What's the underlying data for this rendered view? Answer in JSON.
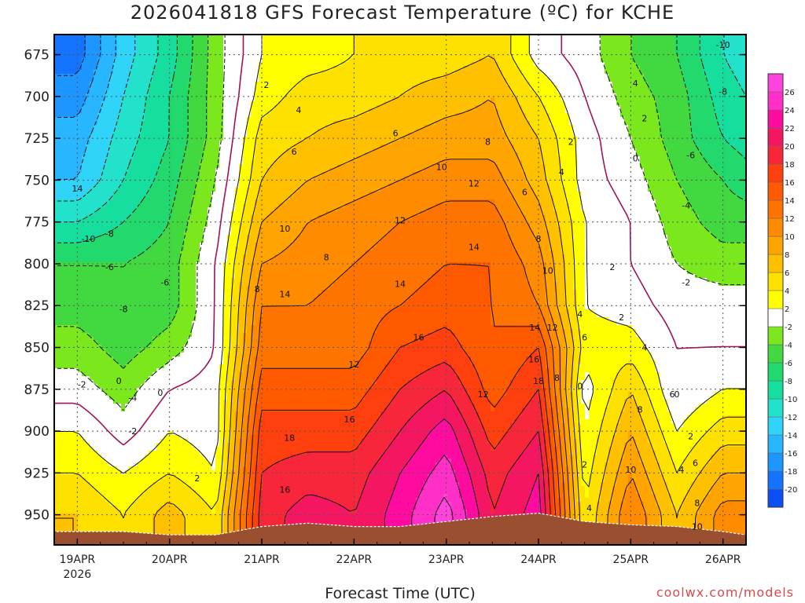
{
  "chart_data": {
    "type": "heatmap",
    "title": "2026041818 GFS Forecast Temperature (ºC) for KCHE",
    "xlabel": "Forecast Time (UTC)",
    "ylabel": "",
    "y_ticks": [
      675,
      700,
      725,
      750,
      775,
      800,
      825,
      850,
      875,
      900,
      925,
      950
    ],
    "y_range": [
      663,
      968
    ],
    "x_ticks": [
      {
        "day": 0,
        "label": "19APR",
        "sub": "2026"
      },
      {
        "day": 1,
        "label": "20APR",
        "sub": ""
      },
      {
        "day": 2,
        "label": "21APR",
        "sub": ""
      },
      {
        "day": 3,
        "label": "22APR",
        "sub": ""
      },
      {
        "day": 4,
        "label": "23APR",
        "sub": ""
      },
      {
        "day": 5,
        "label": "24APR",
        "sub": ""
      },
      {
        "day": 6,
        "label": "25APR",
        "sub": ""
      },
      {
        "day": 7,
        "label": "26APR",
        "sub": ""
      }
    ],
    "x_range": [
      -0.25,
      7.25
    ],
    "grid": true,
    "colorbar": {
      "levels": [
        -20,
        -18,
        -16,
        -14,
        -12,
        -10,
        -8,
        -6,
        -4,
        -2,
        2,
        4,
        6,
        8,
        10,
        12,
        14,
        16,
        18,
        20,
        22,
        24,
        26
      ],
      "colors": [
        "#0b4ff5",
        "#1474ff",
        "#1d96ff",
        "#27b6ff",
        "#2fd4f8",
        "#22e2cc",
        "#15de9e",
        "#22d96e",
        "#41d93f",
        "#7be81d",
        "#ffffff",
        "#ffff00",
        "#ffe100",
        "#ffc000",
        "#ffa400",
        "#ff8c00",
        "#ff7300",
        "#ff5a00",
        "#ff3f0e",
        "#f8263a",
        "#f51662",
        "#ff0ba0",
        "#ff2fc8",
        "#ff44dd"
      ]
    },
    "temperature_profiles": [
      {
        "day": 0.0,
        "levels": [
          [
            675,
            -19
          ],
          [
            700,
            -17
          ],
          [
            725,
            -15
          ],
          [
            750,
            -14
          ],
          [
            775,
            -10
          ],
          [
            800,
            -6
          ],
          [
            825,
            -5
          ],
          [
            850,
            -3
          ],
          [
            875,
            -1
          ],
          [
            900,
            2
          ],
          [
            925,
            4
          ],
          [
            950,
            6
          ]
        ]
      },
      {
        "day": 0.5,
        "levels": [
          [
            675,
            -13
          ],
          [
            700,
            -12
          ],
          [
            725,
            -11
          ],
          [
            750,
            -10
          ],
          [
            775,
            -8
          ],
          [
            800,
            -6
          ],
          [
            825,
            -6
          ],
          [
            850,
            -5
          ],
          [
            875,
            -3
          ],
          [
            900,
            -1
          ],
          [
            925,
            2
          ],
          [
            950,
            4
          ]
        ]
      },
      {
        "day": 1.0,
        "levels": [
          [
            675,
            -9
          ],
          [
            700,
            -8
          ],
          [
            725,
            -8
          ],
          [
            750,
            -7
          ],
          [
            775,
            -6
          ],
          [
            800,
            -5
          ],
          [
            825,
            -5
          ],
          [
            850,
            -3
          ],
          [
            875,
            0
          ],
          [
            900,
            2
          ],
          [
            925,
            4
          ],
          [
            950,
            7
          ]
        ]
      },
      {
        "day": 1.5,
        "levels": [
          [
            675,
            -3
          ],
          [
            700,
            -3
          ],
          [
            725,
            -3
          ],
          [
            750,
            -2
          ],
          [
            775,
            -1
          ],
          [
            800,
            0
          ],
          [
            825,
            0
          ],
          [
            850,
            0
          ],
          [
            875,
            1
          ],
          [
            900,
            1
          ],
          [
            925,
            2
          ],
          [
            950,
            4
          ]
        ]
      },
      {
        "day": 2.0,
        "levels": [
          [
            675,
            2
          ],
          [
            700,
            3
          ],
          [
            725,
            5
          ],
          [
            750,
            6
          ],
          [
            775,
            8
          ],
          [
            800,
            10
          ],
          [
            825,
            12
          ],
          [
            850,
            13
          ],
          [
            875,
            15
          ],
          [
            900,
            17
          ],
          [
            925,
            18
          ],
          [
            950,
            19
          ]
        ]
      },
      {
        "day": 2.5,
        "levels": [
          [
            675,
            3
          ],
          [
            700,
            5
          ],
          [
            725,
            6
          ],
          [
            750,
            8
          ],
          [
            775,
            10
          ],
          [
            800,
            11
          ],
          [
            825,
            12
          ],
          [
            850,
            13
          ],
          [
            875,
            15
          ],
          [
            900,
            17
          ],
          [
            925,
            19
          ],
          [
            950,
            21
          ]
        ]
      },
      {
        "day": 3.0,
        "levels": [
          [
            675,
            4
          ],
          [
            700,
            5
          ],
          [
            725,
            7
          ],
          [
            750,
            9
          ],
          [
            775,
            11
          ],
          [
            800,
            12
          ],
          [
            825,
            13
          ],
          [
            850,
            13
          ],
          [
            875,
            15
          ],
          [
            900,
            17
          ],
          [
            925,
            19
          ],
          [
            950,
            20
          ]
        ]
      },
      {
        "day": 3.5,
        "levels": [
          [
            675,
            5
          ],
          [
            700,
            6
          ],
          [
            725,
            8
          ],
          [
            750,
            10
          ],
          [
            775,
            12
          ],
          [
            800,
            13
          ],
          [
            825,
            14
          ],
          [
            850,
            16
          ],
          [
            875,
            18
          ],
          [
            900,
            20
          ],
          [
            925,
            22
          ],
          [
            950,
            23
          ]
        ]
      },
      {
        "day": 4.0,
        "levels": [
          [
            675,
            5
          ],
          [
            700,
            7
          ],
          [
            725,
            9
          ],
          [
            750,
            11
          ],
          [
            775,
            13
          ],
          [
            800,
            14
          ],
          [
            825,
            15
          ],
          [
            850,
            17
          ],
          [
            875,
            20
          ],
          [
            900,
            23
          ],
          [
            925,
            25
          ],
          [
            950,
            27
          ]
        ]
      },
      {
        "day": 4.5,
        "levels": [
          [
            675,
            6
          ],
          [
            700,
            8
          ],
          [
            725,
            9
          ],
          [
            750,
            11
          ],
          [
            775,
            13
          ],
          [
            800,
            14
          ],
          [
            825,
            14
          ],
          [
            850,
            14
          ],
          [
            875,
            15
          ],
          [
            900,
            17
          ],
          [
            925,
            19
          ],
          [
            950,
            20
          ]
        ]
      },
      {
        "day": 5.0,
        "levels": [
          [
            675,
            1
          ],
          [
            700,
            4
          ],
          [
            725,
            6
          ],
          [
            750,
            7
          ],
          [
            775,
            9
          ],
          [
            800,
            11
          ],
          [
            825,
            12
          ],
          [
            850,
            16
          ],
          [
            875,
            18
          ],
          [
            900,
            20
          ],
          [
            925,
            22
          ],
          [
            950,
            23
          ]
        ]
      },
      {
        "day": 5.5,
        "levels": [
          [
            675,
            -1
          ],
          [
            700,
            0
          ],
          [
            725,
            1
          ],
          [
            750,
            1
          ],
          [
            775,
            2
          ],
          [
            800,
            2
          ],
          [
            825,
            2
          ],
          [
            850,
            3
          ],
          [
            875,
            1
          ],
          [
            900,
            2
          ],
          [
            925,
            3
          ],
          [
            950,
            4
          ]
        ]
      },
      {
        "day": 6.0,
        "levels": [
          [
            675,
            -4
          ],
          [
            700,
            -3
          ],
          [
            725,
            -2
          ],
          [
            750,
            -1
          ],
          [
            775,
            0
          ],
          [
            800,
            0
          ],
          [
            825,
            1
          ],
          [
            850,
            3
          ],
          [
            875,
            6
          ],
          [
            900,
            8
          ],
          [
            925,
            10
          ],
          [
            950,
            12
          ]
        ]
      },
      {
        "day": 6.5,
        "levels": [
          [
            675,
            -6
          ],
          [
            700,
            -5
          ],
          [
            725,
            -5
          ],
          [
            750,
            -4
          ],
          [
            775,
            -3
          ],
          [
            800,
            -2
          ],
          [
            825,
            -1
          ],
          [
            850,
            0
          ],
          [
            875,
            0
          ],
          [
            900,
            2
          ],
          [
            925,
            4
          ],
          [
            950,
            6
          ]
        ]
      },
      {
        "day": 7.0,
        "levels": [
          [
            675,
            -10
          ],
          [
            700,
            -9
          ],
          [
            725,
            -8
          ],
          [
            750,
            -6
          ],
          [
            775,
            -5
          ],
          [
            800,
            -3
          ],
          [
            825,
            -1
          ],
          [
            850,
            0
          ],
          [
            875,
            2
          ],
          [
            900,
            5
          ],
          [
            925,
            8
          ],
          [
            950,
            11
          ]
        ]
      },
      {
        "day": 7.25,
        "levels": [
          [
            675,
            -11
          ],
          [
            700,
            -10
          ],
          [
            725,
            -9
          ],
          [
            750,
            -7
          ],
          [
            775,
            -5
          ],
          [
            800,
            -3
          ],
          [
            825,
            -1
          ],
          [
            850,
            0
          ],
          [
            875,
            2
          ],
          [
            900,
            5
          ],
          [
            925,
            8
          ],
          [
            950,
            11
          ]
        ]
      }
    ],
    "surface_pressure": [
      [
        -0.25,
        960
      ],
      [
        0.5,
        960
      ],
      [
        1.0,
        962
      ],
      [
        1.5,
        962
      ],
      [
        2.0,
        957
      ],
      [
        2.5,
        955
      ],
      [
        3.0,
        957
      ],
      [
        3.5,
        957
      ],
      [
        4.0,
        954
      ],
      [
        4.5,
        951
      ],
      [
        5.0,
        949
      ],
      [
        5.5,
        954
      ],
      [
        6.0,
        956
      ],
      [
        6.5,
        957
      ],
      [
        7.0,
        960
      ],
      [
        7.25,
        962
      ]
    ],
    "contour_labels": [
      {
        "x": 0.0,
        "p": 755,
        "t": "14"
      },
      {
        "x": 0.12,
        "p": 785,
        "t": "-10"
      },
      {
        "x": 0.35,
        "p": 782,
        "t": "-8"
      },
      {
        "x": 0.35,
        "p": 802,
        "t": "-6"
      },
      {
        "x": 0.5,
        "p": 827,
        "t": "-8"
      },
      {
        "x": 0.95,
        "p": 811,
        "t": "-6"
      },
      {
        "x": 0.05,
        "p": 872,
        "t": "-2"
      },
      {
        "x": 0.45,
        "p": 870,
        "t": "0"
      },
      {
        "x": 0.6,
        "p": 880,
        "t": "-4"
      },
      {
        "x": 0.6,
        "p": 900,
        "t": "-2"
      },
      {
        "x": 0.9,
        "p": 877,
        "t": "0"
      },
      {
        "x": 1.3,
        "p": 928,
        "t": "2"
      },
      {
        "x": 2.05,
        "p": 693,
        "t": "2"
      },
      {
        "x": 2.4,
        "p": 708,
        "t": "4"
      },
      {
        "x": 2.35,
        "p": 733,
        "t": "6"
      },
      {
        "x": 2.25,
        "p": 779,
        "t": "10"
      },
      {
        "x": 2.7,
        "p": 796,
        "t": "8"
      },
      {
        "x": 1.95,
        "p": 815,
        "t": "8"
      },
      {
        "x": 2.25,
        "p": 818,
        "t": "14"
      },
      {
        "x": 3.0,
        "p": 860,
        "t": "12"
      },
      {
        "x": 3.5,
        "p": 774,
        "t": "12"
      },
      {
        "x": 3.5,
        "p": 812,
        "t": "14"
      },
      {
        "x": 3.7,
        "p": 844,
        "t": "16"
      },
      {
        "x": 3.95,
        "p": 742,
        "t": "10"
      },
      {
        "x": 3.45,
        "p": 722,
        "t": "6"
      },
      {
        "x": 2.3,
        "p": 904,
        "t": "18"
      },
      {
        "x": 2.25,
        "p": 935,
        "t": "16"
      },
      {
        "x": 2.95,
        "p": 893,
        "t": "16"
      },
      {
        "x": 4.3,
        "p": 752,
        "t": "12"
      },
      {
        "x": 4.3,
        "p": 790,
        "t": "14"
      },
      {
        "x": 4.45,
        "p": 727,
        "t": "8"
      },
      {
        "x": 4.4,
        "p": 878,
        "t": "12"
      },
      {
        "x": 4.85,
        "p": 757,
        "t": "6"
      },
      {
        "x": 5.0,
        "p": 785,
        "t": "8"
      },
      {
        "x": 5.1,
        "p": 804,
        "t": "10"
      },
      {
        "x": 5.15,
        "p": 838,
        "t": "12"
      },
      {
        "x": 4.96,
        "p": 838,
        "t": "14"
      },
      {
        "x": 4.95,
        "p": 857,
        "t": "16"
      },
      {
        "x": 5.0,
        "p": 870,
        "t": "18"
      },
      {
        "x": 5.2,
        "p": 868,
        "t": "8"
      },
      {
        "x": 5.25,
        "p": 745,
        "t": "4"
      },
      {
        "x": 5.35,
        "p": 727,
        "t": "2"
      },
      {
        "x": 5.45,
        "p": 830,
        "t": "4"
      },
      {
        "x": 5.5,
        "p": 844,
        "t": "6"
      },
      {
        "x": 5.45,
        "p": 873,
        "t": "0"
      },
      {
        "x": 5.5,
        "p": 920,
        "t": "2"
      },
      {
        "x": 5.55,
        "p": 946,
        "t": "4"
      },
      {
        "x": 6.05,
        "p": 692,
        "t": "4"
      },
      {
        "x": 6.15,
        "p": 713,
        "t": "2"
      },
      {
        "x": 6.05,
        "p": 737,
        "t": "0"
      },
      {
        "x": 5.8,
        "p": 802,
        "t": "2"
      },
      {
        "x": 5.9,
        "p": 832,
        "t": "2"
      },
      {
        "x": 6.15,
        "p": 850,
        "t": "4"
      },
      {
        "x": 6.45,
        "p": 878,
        "t": "6"
      },
      {
        "x": 6.1,
        "p": 887,
        "t": "8"
      },
      {
        "x": 6.0,
        "p": 923,
        "t": "10"
      },
      {
        "x": 6.5,
        "p": 878,
        "t": "0"
      },
      {
        "x": 6.65,
        "p": 903,
        "t": "2"
      },
      {
        "x": 6.55,
        "p": 923,
        "t": "4"
      },
      {
        "x": 6.7,
        "p": 919,
        "t": "6"
      },
      {
        "x": 6.72,
        "p": 943,
        "t": "8"
      },
      {
        "x": 6.72,
        "p": 957,
        "t": "10"
      },
      {
        "x": 7.0,
        "p": 669,
        "t": "-10"
      },
      {
        "x": 7.0,
        "p": 697,
        "t": "-8"
      },
      {
        "x": 6.65,
        "p": 735,
        "t": "-6"
      },
      {
        "x": 6.6,
        "p": 765,
        "t": "-4"
      },
      {
        "x": 6.6,
        "p": 811,
        "t": "-2"
      }
    ]
  },
  "watermark": "coolwx.com/models"
}
